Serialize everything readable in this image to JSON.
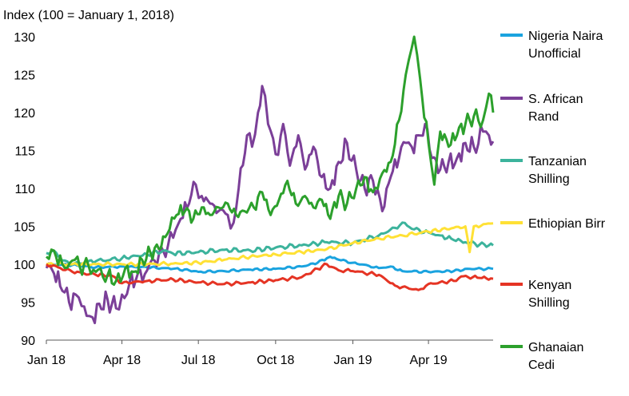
{
  "chart_data": {
    "type": "line",
    "ylabel": "Index (100 = January 1, 2018)",
    "ylim": [
      90,
      130
    ],
    "y_ticks": [
      "90",
      "95",
      "100",
      "105",
      "110",
      "115",
      "120",
      "125",
      "130"
    ],
    "x_ticks": [
      "Jan 18",
      "Apr 18",
      "Jul 18",
      "Oct 18",
      "Jan 19",
      "Apr 19"
    ],
    "xlim": [
      "2018-01-01",
      "2019-06-17"
    ],
    "grid": false,
    "legend": "right",
    "series": [
      {
        "name": "Nigeria Naira Unofficial",
        "color": "#1aa3df",
        "points": [
          [
            "2018-01-01",
            100.0
          ],
          [
            "2018-02-01",
            99.9
          ],
          [
            "2018-03-01",
            99.6
          ],
          [
            "2018-04-01",
            99.7
          ],
          [
            "2018-05-01",
            99.6
          ],
          [
            "2018-06-01",
            99.4
          ],
          [
            "2018-06-20",
            99.2
          ],
          [
            "2018-07-01",
            99.0
          ],
          [
            "2018-08-01",
            99.1
          ],
          [
            "2018-09-01",
            99.3
          ],
          [
            "2018-10-01",
            99.4
          ],
          [
            "2018-11-01",
            99.7
          ],
          [
            "2018-11-20",
            100.2
          ],
          [
            "2018-12-01",
            100.8
          ],
          [
            "2018-12-05",
            101.0
          ],
          [
            "2018-12-15",
            100.6
          ],
          [
            "2019-01-01",
            100.2
          ],
          [
            "2019-01-20",
            99.8
          ],
          [
            "2019-02-01",
            99.5
          ],
          [
            "2019-02-15",
            99.7
          ],
          [
            "2019-03-01",
            99.1
          ],
          [
            "2019-04-01",
            99.0
          ],
          [
            "2019-05-01",
            99.1
          ],
          [
            "2019-05-20",
            99.4
          ],
          [
            "2019-06-17",
            99.4
          ]
        ]
      },
      {
        "name": "S. African Rand",
        "color": "#7b3f98",
        "points": [
          [
            "2018-01-01",
            99.5
          ],
          [
            "2018-01-10",
            98.8
          ],
          [
            "2018-01-20",
            96.5
          ],
          [
            "2018-01-28",
            95.0
          ],
          [
            "2018-02-05",
            96.0
          ],
          [
            "2018-02-12",
            94.5
          ],
          [
            "2018-02-18",
            93.2
          ],
          [
            "2018-02-25",
            93.0
          ],
          [
            "2018-03-05",
            94.8
          ],
          [
            "2018-03-15",
            95.3
          ],
          [
            "2018-03-25",
            94.2
          ],
          [
            "2018-04-01",
            96.0
          ],
          [
            "2018-04-10",
            97.5
          ],
          [
            "2018-04-20",
            98.8
          ],
          [
            "2018-05-01",
            99.2
          ],
          [
            "2018-05-10",
            100.5
          ],
          [
            "2018-05-20",
            101.8
          ],
          [
            "2018-06-01",
            103.5
          ],
          [
            "2018-06-10",
            106.0
          ],
          [
            "2018-06-20",
            108.0
          ],
          [
            "2018-06-28",
            110.5
          ],
          [
            "2018-07-05",
            109.0
          ],
          [
            "2018-07-15",
            108.0
          ],
          [
            "2018-07-25",
            107.0
          ],
          [
            "2018-08-05",
            106.5
          ],
          [
            "2018-08-12",
            105.5
          ],
          [
            "2018-08-18",
            110.0
          ],
          [
            "2018-08-28",
            117.0
          ],
          [
            "2018-09-03",
            115.5
          ],
          [
            "2018-09-10",
            120.0
          ],
          [
            "2018-09-15",
            123.5
          ],
          [
            "2018-09-22",
            118.5
          ],
          [
            "2018-10-01",
            114.5
          ],
          [
            "2018-10-10",
            118.5
          ],
          [
            "2018-10-18",
            113.0
          ],
          [
            "2018-10-28",
            117.0
          ],
          [
            "2018-11-05",
            112.5
          ],
          [
            "2018-11-15",
            115.5
          ],
          [
            "2018-11-25",
            111.5
          ],
          [
            "2018-12-05",
            110.0
          ],
          [
            "2018-12-15",
            113.5
          ],
          [
            "2018-12-25",
            116.0
          ],
          [
            "2019-01-05",
            112.5
          ],
          [
            "2019-01-15",
            110.0
          ],
          [
            "2019-01-25",
            111.0
          ],
          [
            "2019-02-05",
            107.0
          ],
          [
            "2019-02-15",
            111.5
          ],
          [
            "2019-02-25",
            114.0
          ],
          [
            "2019-03-05",
            116.0
          ],
          [
            "2019-03-12",
            115.5
          ],
          [
            "2019-03-20",
            117.0
          ],
          [
            "2019-03-28",
            118.5
          ],
          [
            "2019-04-05",
            114.0
          ],
          [
            "2019-04-15",
            112.5
          ],
          [
            "2019-04-25",
            113.5
          ],
          [
            "2019-05-05",
            114.0
          ],
          [
            "2019-05-15",
            116.0
          ],
          [
            "2019-05-25",
            115.5
          ],
          [
            "2019-06-05",
            117.5
          ],
          [
            "2019-06-12",
            117.0
          ],
          [
            "2019-06-17",
            116.2
          ]
        ]
      },
      {
        "name": "Tanzanian Shilling",
        "color": "#3cb39c",
        "points": [
          [
            "2018-01-01",
            101.5
          ],
          [
            "2018-01-10",
            101.8
          ],
          [
            "2018-01-20",
            100.5
          ],
          [
            "2018-02-01",
            100.0
          ],
          [
            "2018-03-01",
            100.4
          ],
          [
            "2018-04-01",
            100.8
          ],
          [
            "2018-05-01",
            101.3
          ],
          [
            "2018-05-20",
            101.8
          ],
          [
            "2018-06-01",
            101.4
          ],
          [
            "2018-07-01",
            101.6
          ],
          [
            "2018-08-01",
            101.9
          ],
          [
            "2018-09-01",
            101.8
          ],
          [
            "2018-10-01",
            102.2
          ],
          [
            "2018-11-01",
            102.5
          ],
          [
            "2018-12-01",
            102.9
          ],
          [
            "2019-01-01",
            102.8
          ],
          [
            "2019-02-01",
            103.8
          ],
          [
            "2019-02-20",
            104.8
          ],
          [
            "2019-03-01",
            105.5
          ],
          [
            "2019-03-15",
            104.6
          ],
          [
            "2019-04-01",
            104.2
          ],
          [
            "2019-04-15",
            103.8
          ],
          [
            "2019-05-01",
            103.2
          ],
          [
            "2019-05-15",
            102.9
          ],
          [
            "2019-06-01",
            102.6
          ],
          [
            "2019-06-17",
            102.5
          ]
        ]
      },
      {
        "name": "Ethiopian Birr",
        "color": "#ffe135",
        "points": [
          [
            "2018-01-01",
            100.0
          ],
          [
            "2018-02-01",
            100.0
          ],
          [
            "2018-03-01",
            100.0
          ],
          [
            "2018-04-01",
            100.0
          ],
          [
            "2018-05-01",
            100.0
          ],
          [
            "2018-06-01",
            100.1
          ],
          [
            "2018-07-01",
            100.2
          ],
          [
            "2018-08-01",
            100.6
          ],
          [
            "2018-09-01",
            101.0
          ],
          [
            "2018-10-01",
            101.3
          ],
          [
            "2018-11-01",
            101.6
          ],
          [
            "2018-12-01",
            102.0
          ],
          [
            "2019-01-01",
            102.8
          ],
          [
            "2019-02-01",
            103.4
          ],
          [
            "2019-03-01",
            103.8
          ],
          [
            "2019-04-01",
            104.3
          ],
          [
            "2019-05-01",
            104.8
          ],
          [
            "2019-05-15",
            105.0
          ],
          [
            "2019-05-20",
            101.6
          ],
          [
            "2019-05-25",
            105.0
          ],
          [
            "2019-06-17",
            105.4
          ]
        ]
      },
      {
        "name": "Kenyan Shilling",
        "color": "#e53424",
        "points": [
          [
            "2018-01-01",
            100.0
          ],
          [
            "2018-01-15",
            99.6
          ],
          [
            "2018-02-01",
            99.0
          ],
          [
            "2018-03-01",
            98.6
          ],
          [
            "2018-03-20",
            98.5
          ],
          [
            "2018-04-01",
            97.5
          ],
          [
            "2018-05-01",
            97.8
          ],
          [
            "2018-06-01",
            98.0
          ],
          [
            "2018-07-01",
            97.6
          ],
          [
            "2018-08-01",
            97.4
          ],
          [
            "2018-09-01",
            97.6
          ],
          [
            "2018-10-01",
            97.9
          ],
          [
            "2018-11-01",
            98.3
          ],
          [
            "2018-11-20",
            99.4
          ],
          [
            "2018-12-01",
            100.0
          ],
          [
            "2018-12-15",
            99.2
          ],
          [
            "2019-01-01",
            99.1
          ],
          [
            "2019-02-01",
            98.6
          ],
          [
            "2019-02-20",
            97.2
          ],
          [
            "2019-03-01",
            97.0
          ],
          [
            "2019-03-20",
            96.6
          ],
          [
            "2019-04-01",
            97.4
          ],
          [
            "2019-05-01",
            97.8
          ],
          [
            "2019-05-10",
            98.4
          ],
          [
            "2019-06-01",
            98.2
          ],
          [
            "2019-06-17",
            98.1
          ]
        ]
      },
      {
        "name": "Ghanaian Cedi",
        "color": "#2ca02c",
        "points": [
          [
            "2018-01-01",
            101.0
          ],
          [
            "2018-01-10",
            101.8
          ],
          [
            "2018-01-20",
            100.0
          ],
          [
            "2018-02-01",
            100.5
          ],
          [
            "2018-02-10",
            99.6
          ],
          [
            "2018-02-20",
            99.9
          ],
          [
            "2018-03-01",
            99.0
          ],
          [
            "2018-03-15",
            98.6
          ],
          [
            "2018-03-25",
            97.8
          ],
          [
            "2018-04-05",
            99.5
          ],
          [
            "2018-04-15",
            99.0
          ],
          [
            "2018-04-25",
            100.6
          ],
          [
            "2018-05-05",
            101.5
          ],
          [
            "2018-05-15",
            102.0
          ],
          [
            "2018-05-25",
            104.0
          ],
          [
            "2018-06-05",
            106.5
          ],
          [
            "2018-06-15",
            107.0
          ],
          [
            "2018-06-25",
            106.0
          ],
          [
            "2018-07-05",
            107.5
          ],
          [
            "2018-07-15",
            106.5
          ],
          [
            "2018-07-25",
            107.5
          ],
          [
            "2018-08-05",
            108.0
          ],
          [
            "2018-08-15",
            106.5
          ],
          [
            "2018-08-25",
            107.0
          ],
          [
            "2018-09-05",
            107.5
          ],
          [
            "2018-09-15",
            109.5
          ],
          [
            "2018-09-25",
            106.5
          ],
          [
            "2018-10-05",
            108.5
          ],
          [
            "2018-10-15",
            111.0
          ],
          [
            "2018-10-25",
            108.0
          ],
          [
            "2018-11-05",
            109.0
          ],
          [
            "2018-11-15",
            107.5
          ],
          [
            "2018-11-25",
            108.5
          ],
          [
            "2018-12-05",
            106.0
          ],
          [
            "2018-12-15",
            109.0
          ],
          [
            "2018-12-25",
            108.0
          ],
          [
            "2019-01-05",
            110.0
          ],
          [
            "2019-01-15",
            111.5
          ],
          [
            "2019-01-25",
            109.5
          ],
          [
            "2019-02-05",
            112.0
          ],
          [
            "2019-02-15",
            113.5
          ],
          [
            "2019-02-25",
            119.0
          ],
          [
            "2019-03-05",
            125.0
          ],
          [
            "2019-03-12",
            128.5
          ],
          [
            "2019-03-15",
            130.0
          ],
          [
            "2019-03-22",
            124.5
          ],
          [
            "2019-04-01",
            116.0
          ],
          [
            "2019-04-08",
            110.5
          ],
          [
            "2019-04-15",
            117.5
          ],
          [
            "2019-04-25",
            115.5
          ],
          [
            "2019-05-05",
            117.0
          ],
          [
            "2019-05-15",
            118.5
          ],
          [
            "2019-05-25",
            119.5
          ],
          [
            "2019-06-05",
            119.0
          ],
          [
            "2019-06-12",
            122.5
          ],
          [
            "2019-06-17",
            120.0
          ]
        ]
      }
    ]
  }
}
